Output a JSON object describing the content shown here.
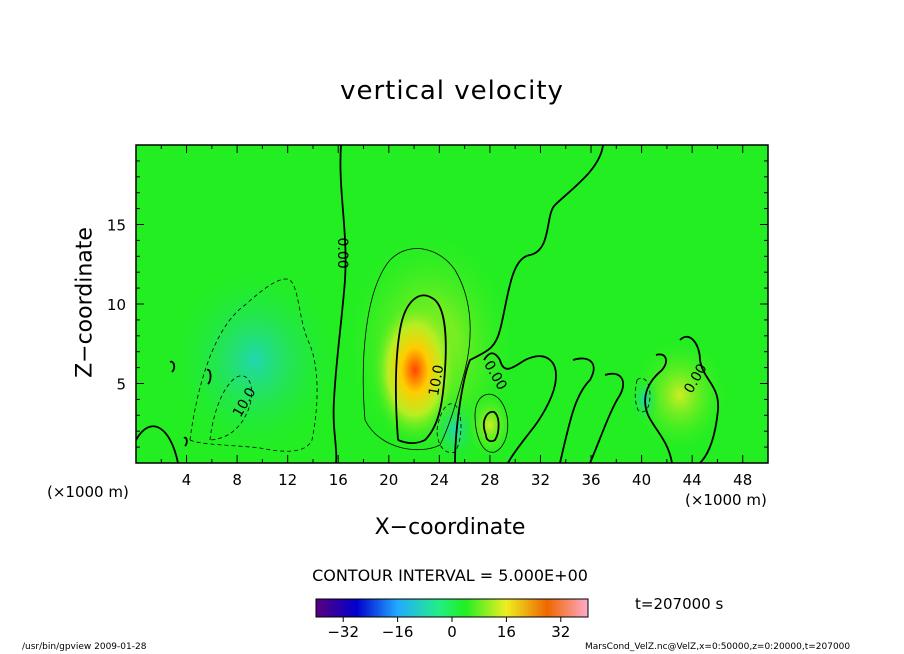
{
  "title": "vertical velocity",
  "xlabel": "X−coordinate",
  "ylabel": "Z−coordinate",
  "x_unit_left": "(×1000 m)",
  "x_unit_right": "(×1000 m)",
  "contour_interval": "CONTOUR INTERVAL = 5.000E+00",
  "time_label": "t=207000  s",
  "footer_left": "/usr/bin/gpview   2009-01-28",
  "footer_right": "MarsCond_VelZ.nc@VelZ,x=0:50000,z=0:20000,t=207000",
  "colors": {
    "background": "#22ee22",
    "positive_peak": "#ee4400",
    "negative_peak": "#22cccc"
  },
  "chart_data": {
    "type": "heatmap",
    "title": "vertical velocity",
    "xlabel": "X−coordinate",
    "ylabel": "Z−coordinate",
    "xlim": [
      0,
      50
    ],
    "ylim": [
      0,
      20
    ],
    "x_ticks": [
      4,
      8,
      12,
      16,
      20,
      24,
      28,
      32,
      36,
      40,
      44,
      48
    ],
    "y_ticks": [
      5,
      10,
      15
    ],
    "contour_labels": [
      {
        "text": "0.00",
        "x": 16.3,
        "z": 13.2,
        "angle": 90
      },
      {
        "text": "10.0",
        "x": 23.8,
        "z": 5.2,
        "angle": -80
      },
      {
        "text": "10.0",
        "x": 8.6,
        "z": 3.8,
        "angle": -60
      },
      {
        "text": "0.00",
        "x": 28.4,
        "z": 5.5,
        "angle": 60
      },
      {
        "text": "0.00",
        "x": 44.3,
        "z": 5.3,
        "angle": -60
      }
    ],
    "colorbar": {
      "ticks": [
        -32,
        -16,
        0,
        16,
        32
      ],
      "range": [
        -40,
        40
      ]
    }
  }
}
